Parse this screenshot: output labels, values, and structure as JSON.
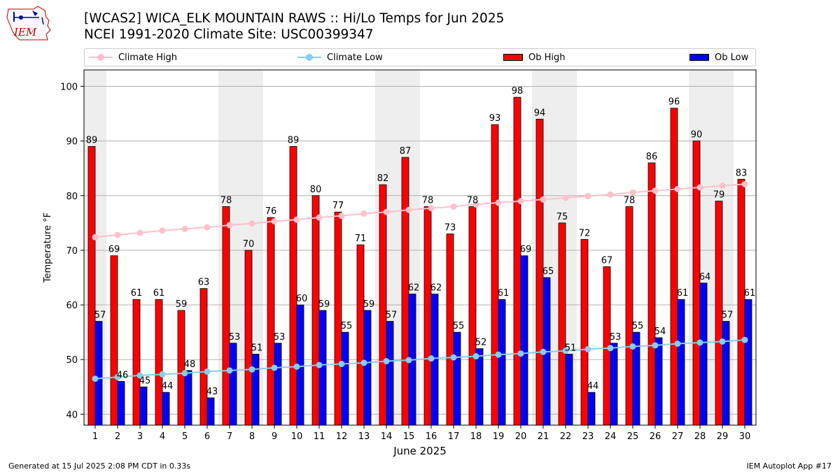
{
  "header": {
    "logo_text": "IEM",
    "title_line1": "[WCAS2] WICA_ELK MOUNTAIN RAWS :: Hi/Lo Temps for Jun 2025",
    "title_line2": "NCEI 1991-2020 Climate Site: USC00399347"
  },
  "legend": {
    "climate_high": "Climate High",
    "climate_low": "Climate Low",
    "ob_high": "Ob High",
    "ob_low": "Ob Low"
  },
  "colors": {
    "ob_high": "#ff0000",
    "ob_low": "#0000ff",
    "climate_high": "#ffc0cb",
    "climate_low": "#87ceeb",
    "weekend_shade": "#eeeeee",
    "grid": "#b0b0b0"
  },
  "chart_data": {
    "type": "bar",
    "xlabel": "June 2025",
    "ylabel": "Temperature °F",
    "ylim": [
      38,
      103
    ],
    "yticks": [
      40,
      50,
      60,
      70,
      80,
      90,
      100
    ],
    "grid": "horizontal",
    "legend_position": "top",
    "categories": [
      1,
      2,
      3,
      4,
      5,
      6,
      7,
      8,
      9,
      10,
      11,
      12,
      13,
      14,
      15,
      16,
      17,
      18,
      19,
      20,
      21,
      22,
      23,
      24,
      25,
      26,
      27,
      28,
      29,
      30
    ],
    "shaded_days": [
      1,
      7,
      8,
      14,
      15,
      21,
      22,
      28,
      29
    ],
    "series": [
      {
        "name": "Ob High",
        "kind": "bar",
        "values": [
          89,
          69,
          61,
          61,
          59,
          63,
          78,
          70,
          76,
          89,
          80,
          77,
          71,
          82,
          87,
          78,
          73,
          78,
          93,
          98,
          94,
          75,
          72,
          67,
          78,
          86,
          96,
          90,
          79,
          83
        ]
      },
      {
        "name": "Ob Low",
        "kind": "bar",
        "values": [
          57,
          46,
          45,
          44,
          48,
          43,
          53,
          51,
          53,
          60,
          59,
          55,
          59,
          57,
          62,
          62,
          55,
          52,
          61,
          69,
          65,
          51,
          44,
          53,
          55,
          54,
          61,
          64,
          57,
          61
        ]
      },
      {
        "name": "Climate High",
        "kind": "line",
        "values": [
          72.4,
          72.8,
          73.2,
          73.6,
          73.9,
          74.2,
          74.6,
          74.9,
          75.3,
          75.6,
          76.0,
          76.3,
          76.7,
          77.0,
          77.4,
          77.7,
          78.0,
          78.4,
          78.7,
          79.0,
          79.3,
          79.6,
          79.9,
          80.2,
          80.6,
          80.9,
          81.2,
          81.5,
          81.8,
          82.1
        ]
      },
      {
        "name": "Climate Low",
        "kind": "line",
        "values": [
          46.5,
          46.8,
          47.1,
          47.3,
          47.5,
          47.8,
          48.0,
          48.2,
          48.5,
          48.7,
          49.0,
          49.2,
          49.4,
          49.7,
          49.9,
          50.2,
          50.4,
          50.6,
          50.9,
          51.1,
          51.4,
          51.6,
          51.9,
          52.1,
          52.4,
          52.6,
          52.9,
          53.1,
          53.3,
          53.6
        ]
      }
    ]
  },
  "footer": {
    "generated": "Generated at 15 Jul 2025 2:08 PM CDT in 0.33s",
    "app": "IEM Autoplot App #17"
  }
}
